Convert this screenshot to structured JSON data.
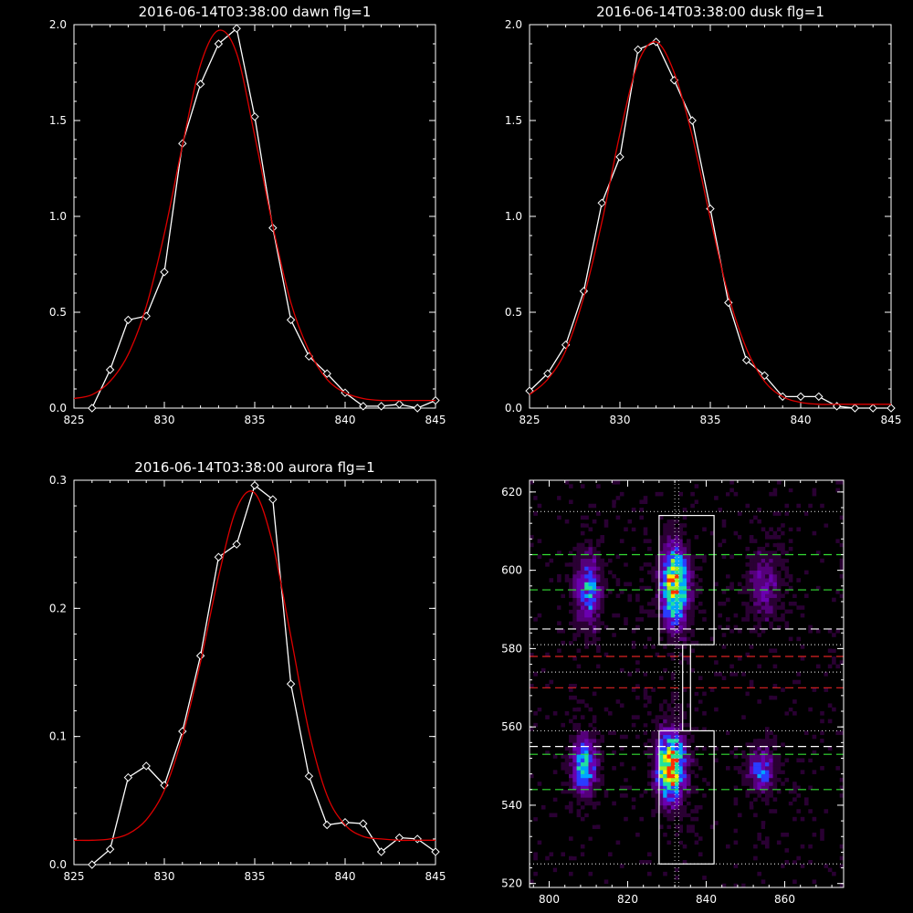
{
  "chart_data": [
    {
      "type": "line",
      "title": "2016-06-14T03:38:00 dawn flg=1",
      "xlim": [
        825,
        845
      ],
      "ylim": [
        0,
        2.0
      ],
      "xticks": [
        "825",
        "830",
        "835",
        "840",
        "845"
      ],
      "yticks": [
        "0.0",
        "0.5",
        "1.0",
        "1.5",
        "2.0"
      ],
      "grid": false,
      "series": [
        {
          "color": "#ffffff",
          "marker": "diamond",
          "x": [
            826,
            827,
            828,
            829,
            830,
            831,
            832,
            833,
            834,
            835,
            836,
            837,
            838,
            839,
            840,
            841,
            842,
            843,
            844,
            845
          ],
          "y": [
            0.0,
            0.2,
            0.46,
            0.48,
            0.71,
            1.38,
            1.69,
            1.9,
            1.98,
            1.52,
            0.94,
            0.46,
            0.27,
            0.18,
            0.08,
            0.01,
            0.01,
            0.02,
            0.0,
            0.04
          ]
        },
        {
          "color": "#dd0000",
          "x": [
            825,
            826,
            827,
            828,
            829,
            830,
            831,
            832,
            833,
            834,
            835,
            836,
            837,
            838,
            839,
            840,
            841,
            842,
            843,
            844,
            845
          ],
          "y": [
            0.05,
            0.07,
            0.14,
            0.28,
            0.53,
            0.91,
            1.37,
            1.79,
            1.97,
            1.85,
            1.42,
            0.95,
            0.55,
            0.3,
            0.15,
            0.08,
            0.05,
            0.04,
            0.04,
            0.04,
            0.04
          ]
        }
      ]
    },
    {
      "type": "line",
      "title": "2016-06-14T03:38:00 dusk flg=1",
      "xlim": [
        825,
        845
      ],
      "ylim": [
        0,
        2.0
      ],
      "xticks": [
        "825",
        "830",
        "835",
        "840",
        "845"
      ],
      "yticks": [
        "0.0",
        "0.5",
        "1.0",
        "1.5",
        "2.0"
      ],
      "grid": false,
      "series": [
        {
          "color": "#ffffff",
          "marker": "diamond",
          "x": [
            825,
            826,
            827,
            828,
            829,
            830,
            831,
            832,
            833,
            834,
            835,
            836,
            837,
            838,
            839,
            840,
            841,
            842,
            843,
            844,
            845
          ],
          "y": [
            0.09,
            0.18,
            0.33,
            0.61,
            1.07,
            1.31,
            1.87,
            1.91,
            1.71,
            1.5,
            1.04,
            0.55,
            0.25,
            0.17,
            0.06,
            0.06,
            0.06,
            0.01,
            0.0,
            0.0,
            0.0
          ]
        },
        {
          "color": "#dd0000",
          "x": [
            825,
            826,
            827,
            828,
            829,
            830,
            831,
            832,
            833,
            834,
            835,
            836,
            837,
            838,
            839,
            840,
            841,
            842,
            843,
            844,
            845
          ],
          "y": [
            0.07,
            0.15,
            0.3,
            0.58,
            0.97,
            1.43,
            1.8,
            1.91,
            1.75,
            1.42,
            0.99,
            0.59,
            0.31,
            0.14,
            0.06,
            0.03,
            0.02,
            0.02,
            0.02,
            0.02,
            0.02
          ]
        }
      ]
    },
    {
      "type": "line",
      "title": "2016-06-14T03:38:00 aurora flg=1",
      "xlim": [
        825,
        845
      ],
      "ylim": [
        0,
        0.3
      ],
      "xticks": [
        "825",
        "830",
        "835",
        "840",
        "845"
      ],
      "yticks": [
        "0.0",
        "0.1",
        "0.2",
        "0.3"
      ],
      "grid": false,
      "series": [
        {
          "color": "#ffffff",
          "marker": "diamond",
          "x": [
            826,
            827,
            828,
            829,
            830,
            831,
            832,
            833,
            834,
            835,
            836,
            837,
            838,
            839,
            840,
            841,
            842,
            843,
            844,
            845
          ],
          "y": [
            0.0,
            0.012,
            0.068,
            0.077,
            0.062,
            0.104,
            0.163,
            0.24,
            0.25,
            0.296,
            0.285,
            0.141,
            0.069,
            0.031,
            0.033,
            0.032,
            0.01,
            0.021,
            0.02,
            0.01
          ]
        },
        {
          "color": "#dd0000",
          "x": [
            825,
            826,
            827,
            828,
            829,
            830,
            831,
            832,
            833,
            834,
            835,
            836,
            837,
            838,
            839,
            840,
            841,
            842,
            843,
            844,
            845
          ],
          "y": [
            0.019,
            0.019,
            0.02,
            0.024,
            0.035,
            0.058,
            0.1,
            0.158,
            0.225,
            0.278,
            0.29,
            0.25,
            0.178,
            0.104,
            0.054,
            0.031,
            0.022,
            0.02,
            0.019,
            0.019,
            0.019
          ]
        }
      ]
    },
    {
      "type": "heatmap",
      "title": "",
      "xlim": [
        795,
        875
      ],
      "ylim": [
        519,
        623
      ],
      "xticks": [
        "800",
        "820",
        "840",
        "860"
      ],
      "yticks": [
        "520",
        "540",
        "560",
        "580",
        "600",
        "620"
      ],
      "colorscale": [
        "#000000",
        "#2a0033",
        "#55007a",
        "#6a00b0",
        "#2a3cff",
        "#00a6ff",
        "#20e0a0",
        "#a0f020",
        "#ffee00",
        "#ff3000"
      ],
      "blobs": [
        {
          "x": 810,
          "y": 595,
          "sx": 2.2,
          "sy": 6,
          "amp": 0.55
        },
        {
          "x": 832,
          "y": 596,
          "sx": 2.4,
          "sy": 7,
          "amp": 0.92
        },
        {
          "x": 855,
          "y": 596,
          "sx": 3,
          "sy": 6,
          "amp": 0.28
        },
        {
          "x": 809,
          "y": 550,
          "sx": 2.2,
          "sy": 5,
          "amp": 0.6
        },
        {
          "x": 831,
          "y": 550,
          "sx": 2.5,
          "sy": 6,
          "amp": 1.0
        },
        {
          "x": 854,
          "y": 549,
          "sx": 2.4,
          "sy": 4,
          "amp": 0.42
        }
      ],
      "boxes": [
        {
          "x0": 828,
          "x1": 842,
          "y0": 581,
          "y1": 614
        },
        {
          "x0": 828,
          "x1": 842,
          "y0": 525,
          "y1": 559
        },
        {
          "x0": 834,
          "x1": 836,
          "y0": 559,
          "y1": 581
        }
      ],
      "hlines": [
        {
          "y": 615,
          "color": "#cccccc",
          "style": "dotted"
        },
        {
          "y": 604,
          "color": "#33dd33",
          "style": "dashed"
        },
        {
          "y": 595,
          "color": "#33dd33",
          "style": "dashed"
        },
        {
          "y": 585,
          "color": "#ffffff",
          "style": "dashed"
        },
        {
          "y": 581,
          "color": "#cccccc",
          "style": "dotted"
        },
        {
          "y": 578,
          "color": "#dd2222",
          "style": "dashed"
        },
        {
          "y": 574,
          "color": "#cccccc",
          "style": "dotted"
        },
        {
          "y": 570,
          "color": "#dd2222",
          "style": "dashed"
        },
        {
          "y": 559,
          "color": "#cccccc",
          "style": "dotted"
        },
        {
          "y": 555,
          "color": "#ffffff",
          "style": "dashed"
        },
        {
          "y": 553,
          "color": "#33dd33",
          "style": "dashed"
        },
        {
          "y": 544,
          "color": "#33dd33",
          "style": "dashed"
        },
        {
          "y": 525,
          "color": "#cccccc",
          "style": "dotted"
        }
      ],
      "vlines": [
        {
          "x": 832,
          "color": "#cccccc",
          "style": "dotted"
        },
        {
          "x": 833,
          "color": "#cccccc",
          "style": "dotted"
        }
      ]
    }
  ]
}
